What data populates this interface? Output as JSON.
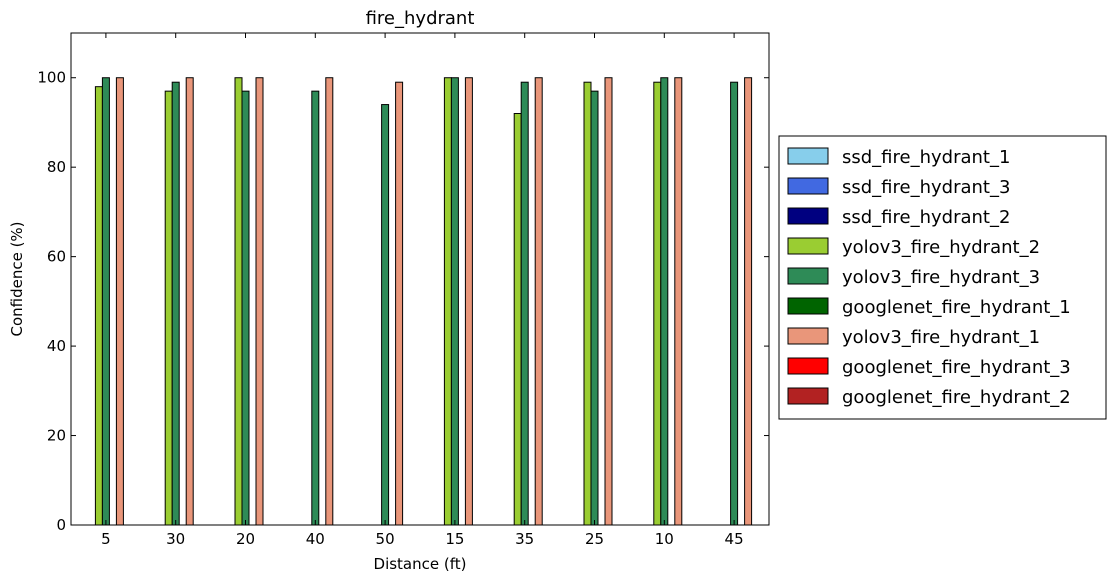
{
  "chart_data": {
    "type": "bar",
    "title": "fire_hydrant",
    "xlabel": "Distance (ft)",
    "ylabel": "Confidence (%)",
    "ylim": [
      0,
      110
    ],
    "yticks": [
      0,
      20,
      40,
      60,
      80,
      100
    ],
    "grid": false,
    "legend_position": "right",
    "categories": [
      "5",
      "30",
      "20",
      "40",
      "50",
      "15",
      "35",
      "25",
      "10",
      "45"
    ],
    "series": [
      {
        "name": "ssd_fire_hydrant_1",
        "color": "#87ceeb",
        "values": [
          0,
          0,
          0,
          0,
          0,
          0,
          0,
          0,
          0,
          0
        ]
      },
      {
        "name": "ssd_fire_hydrant_3",
        "color": "#4169e1",
        "values": [
          0,
          0,
          0,
          0,
          0,
          0,
          0,
          0,
          0,
          0
        ]
      },
      {
        "name": "ssd_fire_hydrant_2",
        "color": "#000080",
        "values": [
          0,
          0,
          0,
          0,
          0,
          0,
          0,
          0,
          0,
          0
        ]
      },
      {
        "name": "yolov3_fire_hydrant_2",
        "color": "#9acd32",
        "values": [
          98,
          97,
          100,
          0,
          0,
          100,
          92,
          99,
          99,
          0
        ]
      },
      {
        "name": "yolov3_fire_hydrant_3",
        "color": "#2e8b57",
        "values": [
          100,
          99,
          97,
          97,
          94,
          100,
          99,
          97,
          100,
          99
        ]
      },
      {
        "name": "googlenet_fire_hydrant_1",
        "color": "#006400",
        "values": [
          0,
          0,
          0,
          0,
          0,
          0,
          0,
          0,
          0,
          0
        ]
      },
      {
        "name": "yolov3_fire_hydrant_1",
        "color": "#e9967a",
        "values": [
          100,
          100,
          100,
          100,
          99,
          100,
          100,
          100,
          100,
          100
        ]
      },
      {
        "name": "googlenet_fire_hydrant_3",
        "color": "#ff0000",
        "values": [
          0,
          0,
          0,
          0,
          0,
          0,
          0,
          0,
          0,
          0
        ]
      },
      {
        "name": "googlenet_fire_hydrant_2",
        "color": "#b22222",
        "values": [
          0,
          0,
          0,
          0,
          0,
          0,
          0,
          0,
          0,
          0
        ]
      }
    ]
  }
}
